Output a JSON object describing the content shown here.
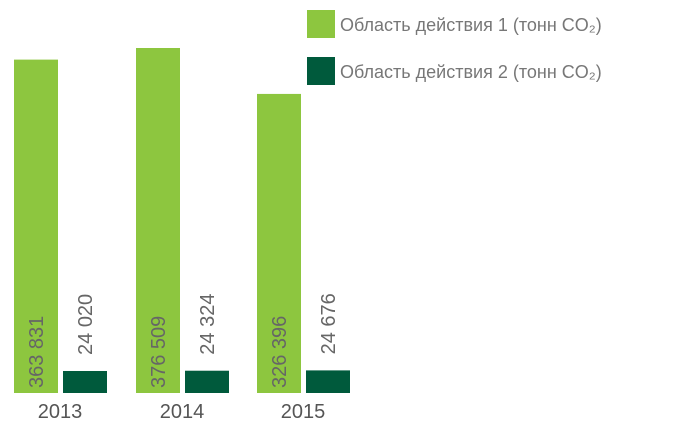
{
  "chart_data": {
    "type": "bar",
    "categories": [
      "2013",
      "2014",
      "2015"
    ],
    "series": [
      {
        "name": "Область действия 1 (тонн CO₂)",
        "color": "#8dc63f",
        "values": [
          363831,
          376509,
          326396
        ],
        "value_labels": [
          "363 831",
          "376 509",
          "326 396"
        ]
      },
      {
        "name": "Область действия 2 (тонн CO₂)",
        "color": "#005a3c",
        "values": [
          24020,
          24324,
          24676
        ],
        "value_labels": [
          "24 020",
          "24 324",
          "24 676"
        ]
      }
    ]
  }
}
